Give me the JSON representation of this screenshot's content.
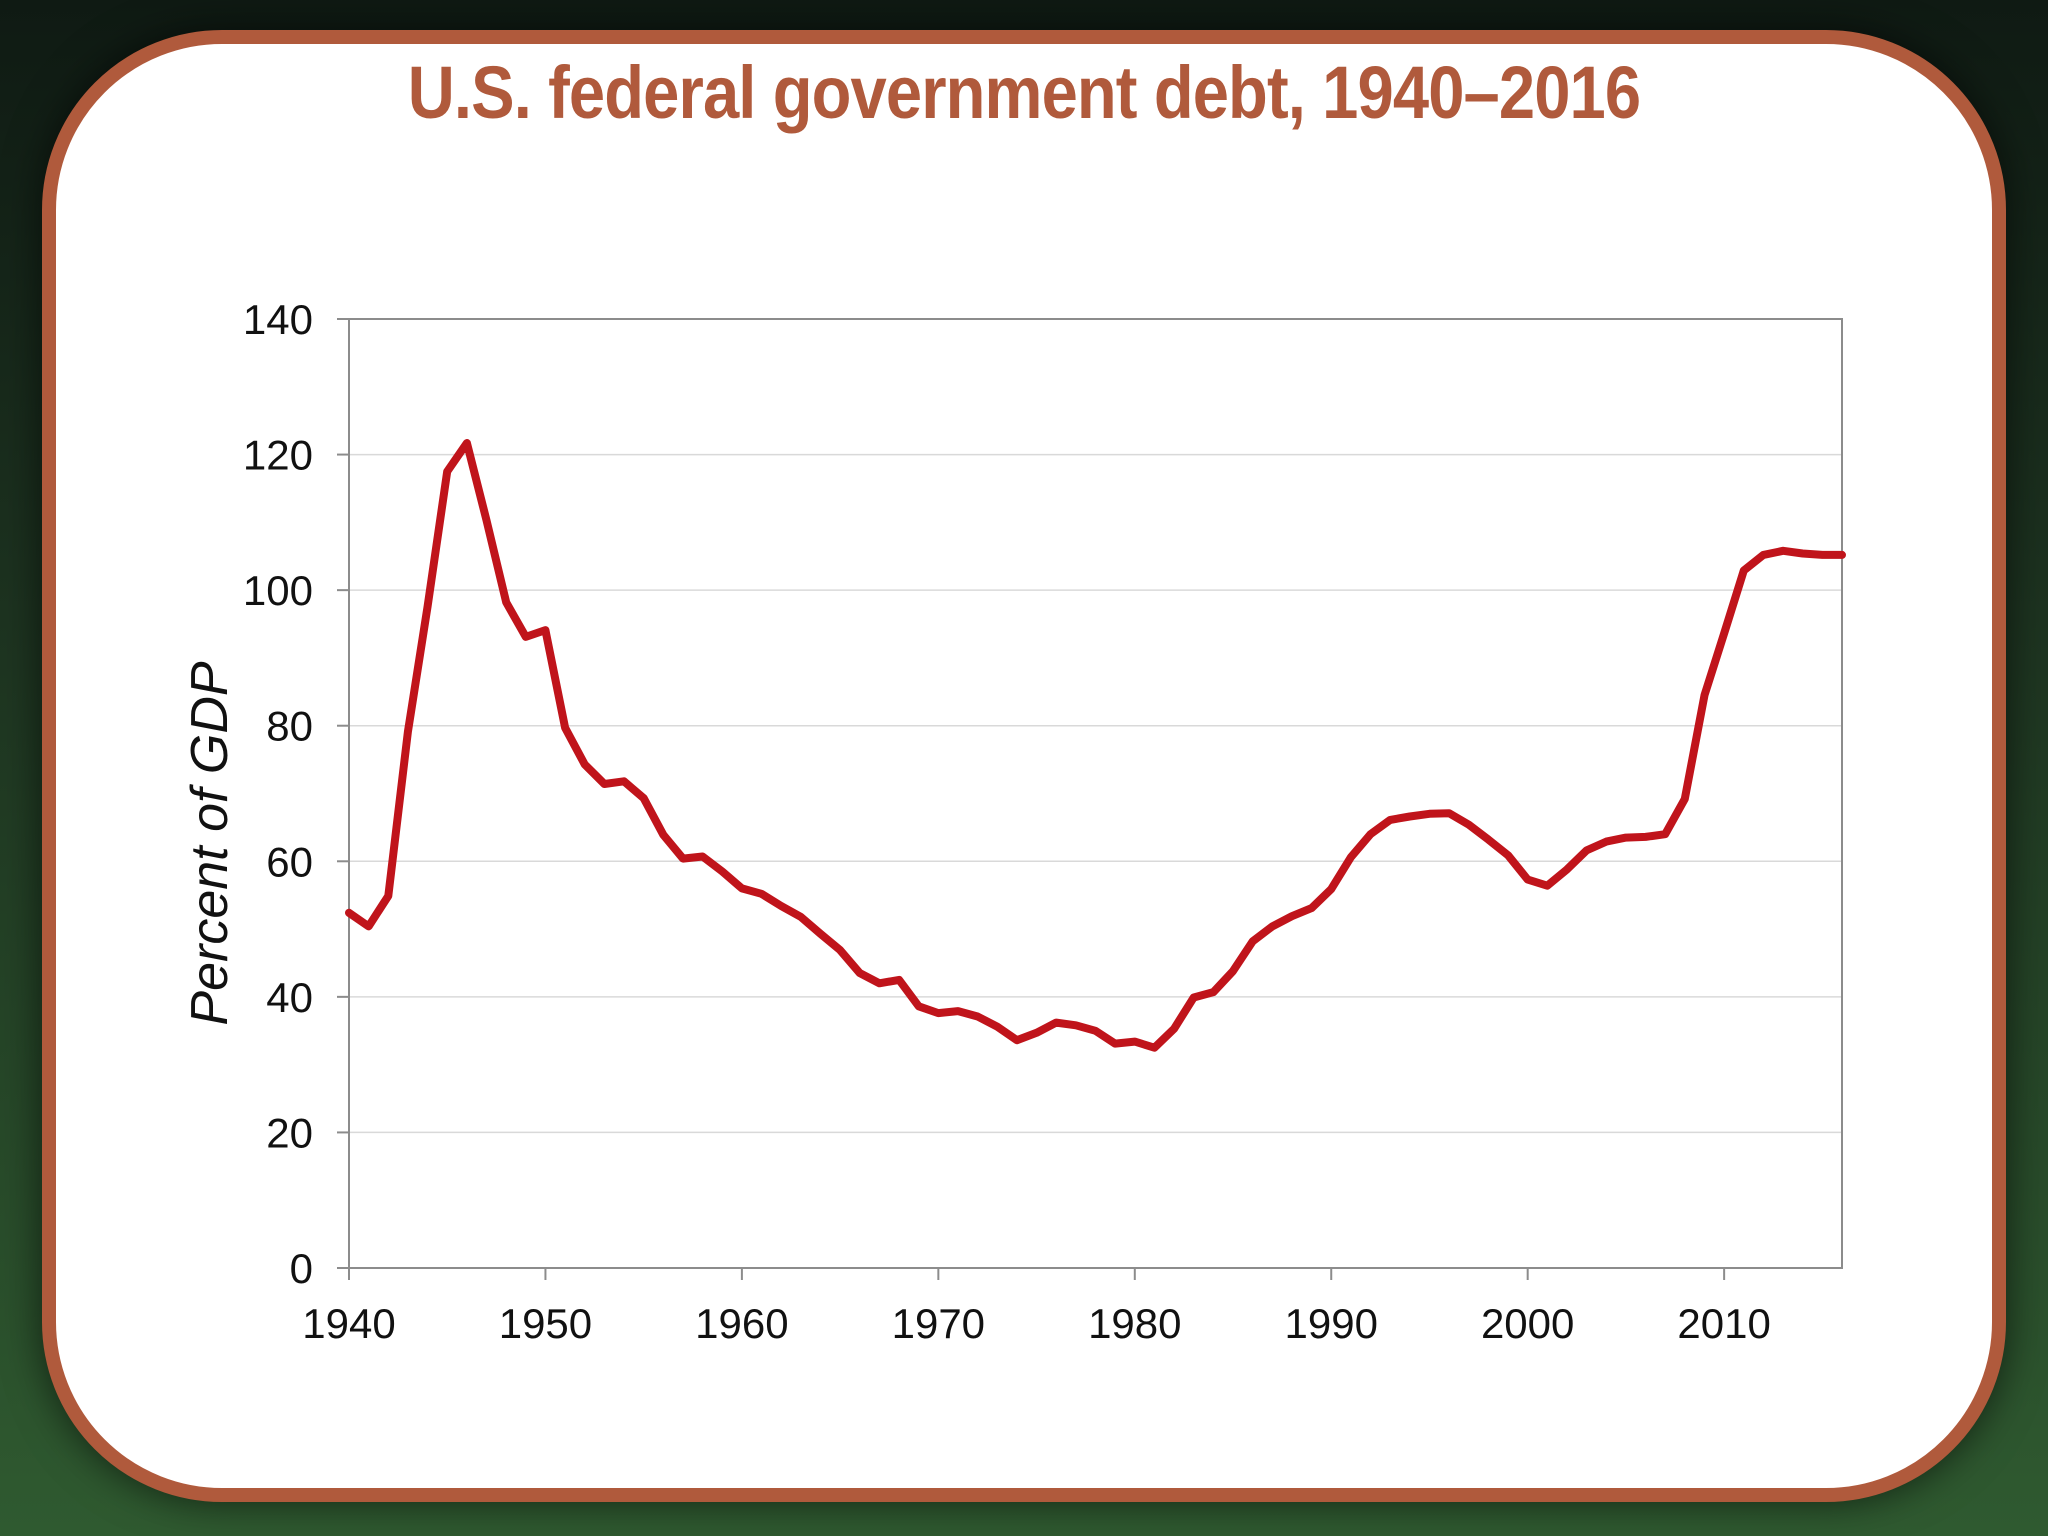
{
  "chart_data": {
    "type": "line",
    "title": "U.S. federal government debt, 1940–2016",
    "xlabel": "",
    "ylabel": "Percent of GDP",
    "xlim": [
      1940,
      2016
    ],
    "ylim": [
      0,
      140
    ],
    "x_ticks": [
      1940,
      1950,
      1960,
      1970,
      1980,
      1990,
      2000,
      2010
    ],
    "y_ticks": [
      0,
      20,
      40,
      60,
      80,
      100,
      120,
      140
    ],
    "grid": "horizontal",
    "legend": "none",
    "colors": {
      "line": "#c0141b",
      "title": "#b05a3c",
      "frame": "#b05a3c",
      "grid": "#d9d9d9",
      "axis": "#8c8c8c"
    },
    "series": [
      {
        "x": [
          1940,
          1941,
          1942,
          1943,
          1944,
          1945,
          1946,
          1947,
          1948,
          1949,
          1950,
          1951,
          1952,
          1953,
          1954,
          1955,
          1956,
          1957,
          1958,
          1959,
          1960,
          1961,
          1962,
          1963,
          1964,
          1965,
          1966,
          1967,
          1968,
          1969,
          1970,
          1971,
          1972,
          1973,
          1974,
          1975,
          1976,
          1977,
          1978,
          1979,
          1980,
          1981,
          1982,
          1983,
          1984,
          1985,
          1986,
          1987,
          1988,
          1989,
          1990,
          1991,
          1992,
          1993,
          1994,
          1995,
          1996,
          1997,
          1998,
          1999,
          2000,
          2001,
          2002,
          2003,
          2004,
          2005,
          2006,
          2007,
          2008,
          2009,
          2010,
          2011,
          2012,
          2013,
          2014,
          2015,
          2016
        ],
        "values": [
          52.4,
          50.4,
          54.9,
          79.1,
          97.6,
          117.5,
          121.7,
          110.3,
          98.2,
          93.1,
          94.1,
          79.7,
          74.3,
          71.4,
          71.8,
          69.3,
          63.9,
          60.4,
          60.7,
          58.5,
          56.0,
          55.2,
          53.4,
          51.8,
          49.3,
          46.9,
          43.5,
          42.0,
          42.5,
          38.6,
          37.6,
          37.9,
          37.1,
          35.6,
          33.6,
          34.7,
          36.2,
          35.8,
          35.0,
          33.1,
          33.4,
          32.5,
          35.3,
          39.9,
          40.7,
          43.8,
          48.2,
          50.4,
          51.9,
          53.1,
          55.9,
          60.6,
          64.0,
          66.1,
          66.6,
          67.0,
          67.1,
          65.4,
          63.2,
          60.9,
          57.3,
          56.4,
          58.8,
          61.6,
          62.9,
          63.5,
          63.6,
          64.0,
          69.2,
          84.5,
          93.6,
          102.9,
          105.2,
          105.8,
          105.4,
          105.2,
          105.2
        ]
      }
    ]
  }
}
